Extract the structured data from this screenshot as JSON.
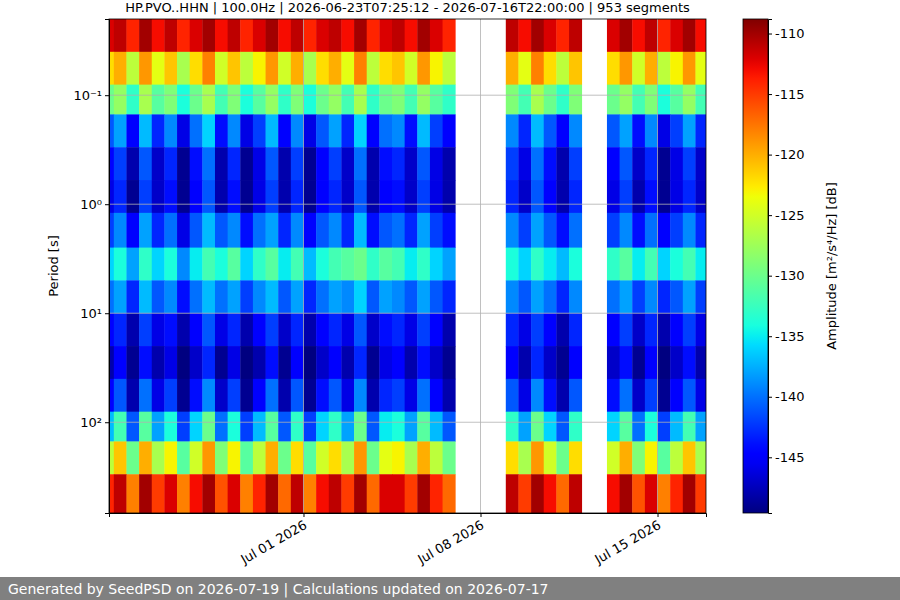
{
  "chart_data": {
    "type": "heatmap",
    "title": "HP.PVO..HHN | 100.0Hz | 2026-06-23T07:25:12 - 2026-07-16T22:00:00 | 953 segments",
    "ylabel": "Period [s]",
    "footer": "Generated by SeedPSD on 2026-07-19 | Calculations updated on 2026-07-17",
    "log": "y",
    "grid": true,
    "xlim": [
      "2026-06-23T07:25:12",
      "2026-07-16T22:00:00"
    ],
    "xticks": [
      {
        "value": "2026-07-01T00:00:00",
        "label": "Jul 01 2026"
      },
      {
        "value": "2026-07-08T00:00:00",
        "label": "Jul 08 2026"
      },
      {
        "value": "2026-07-15T00:00:00",
        "label": "Jul 15 2026"
      }
    ],
    "ylim": [
      0.02,
      680
    ],
    "yticks": [
      {
        "value": 0.1,
        "label": "10⁻¹"
      },
      {
        "value": 1,
        "label": "10⁰"
      },
      {
        "value": 10,
        "label": "10¹"
      },
      {
        "value": 100,
        "label": "10²"
      }
    ],
    "x_edges": [
      "2026-06-23T07:25:12",
      "2026-06-23T12:00:00",
      "2026-06-24T00:00:00",
      "2026-06-24T12:00:00",
      "2026-06-25T00:00:00",
      "2026-06-25T12:00:00",
      "2026-06-26T00:00:00",
      "2026-06-26T12:00:00",
      "2026-06-27T00:00:00",
      "2026-06-27T12:00:00",
      "2026-06-28T00:00:00",
      "2026-06-28T12:00:00",
      "2026-06-29T00:00:00",
      "2026-06-29T12:00:00",
      "2026-06-30T00:00:00",
      "2026-06-30T12:00:00",
      "2026-07-01T00:00:00",
      "2026-07-01T12:00:00",
      "2026-07-02T00:00:00",
      "2026-07-02T12:00:00",
      "2026-07-03T00:00:00",
      "2026-07-03T12:00:00",
      "2026-07-04T00:00:00",
      "2026-07-04T12:00:00",
      "2026-07-05T00:00:00",
      "2026-07-05T12:00:00",
      "2026-07-06T00:00:00",
      "2026-07-06T12:00:00",
      "2026-07-07T00:00:00",
      "2026-07-07T12:00:00",
      "2026-07-08T00:00:00",
      "2026-07-08T12:00:00",
      "2026-07-09T00:00:00",
      "2026-07-09T12:00:00",
      "2026-07-10T00:00:00",
      "2026-07-10T12:00:00",
      "2026-07-11T00:00:00",
      "2026-07-11T12:00:00",
      "2026-07-12T00:00:00",
      "2026-07-12T12:00:00",
      "2026-07-13T00:00:00",
      "2026-07-13T12:00:00",
      "2026-07-14T00:00:00",
      "2026-07-14T12:00:00",
      "2026-07-15T00:00:00",
      "2026-07-15T12:00:00",
      "2026-07-16T00:00:00",
      "2026-07-16T12:00:00",
      "2026-07-16T22:00:00"
    ],
    "y_edges": [
      0.02,
      0.04,
      0.08,
      0.15,
      0.3,
      0.6,
      1.2,
      2.5,
      5,
      10,
      20,
      40,
      80,
      150,
      300,
      680
    ],
    "values": [
      [
        -112,
        -111,
        -114,
        -110,
        -113,
        -111,
        -114,
        -112,
        -110,
        -113,
        -111,
        -114,
        -112,
        -110,
        -113,
        -111,
        -114,
        -112,
        -111,
        -113,
        -110,
        -114,
        -112,
        -111,
        -113,
        -110,
        -112,
        -114,
        null,
        null,
        null,
        null,
        -111,
        -113,
        -110,
        -112,
        -114,
        -111,
        null,
        null,
        -112,
        -110,
        -113,
        -111,
        -114,
        -112,
        -110,
        -113
      ],
      [
        -122,
        -120,
        -126,
        -119,
        -124,
        -121,
        -127,
        -122,
        -118,
        -125,
        -121,
        -126,
        -123,
        -119,
        -125,
        -120,
        -127,
        -122,
        -120,
        -124,
        -118,
        -126,
        -122,
        -121,
        -125,
        -119,
        -123,
        -126,
        null,
        null,
        null,
        null,
        -120,
        -124,
        -118,
        -122,
        -126,
        -121,
        null,
        null,
        -122,
        -119,
        -125,
        -120,
        -126,
        -123,
        -119,
        -124
      ],
      [
        -130,
        -128,
        -133,
        -127,
        -131,
        -129,
        -134,
        -130,
        -127,
        -132,
        -129,
        -134,
        -131,
        -128,
        -133,
        -129,
        -134,
        -130,
        -128,
        -132,
        -127,
        -133,
        -130,
        -129,
        -132,
        -128,
        -131,
        -133,
        null,
        null,
        null,
        null,
        -129,
        -132,
        -127,
        -130,
        -133,
        -129,
        null,
        null,
        -130,
        -128,
        -132,
        -129,
        -134,
        -131,
        -128,
        -132
      ],
      [
        -141,
        -138,
        -145,
        -137,
        -143,
        -139,
        -146,
        -140,
        -136,
        -144,
        -139,
        -146,
        -142,
        -137,
        -145,
        -139,
        -146,
        -141,
        -138,
        -143,
        -136,
        -145,
        -140,
        -139,
        -144,
        -137,
        -142,
        -145,
        null,
        null,
        null,
        null,
        -139,
        -143,
        -137,
        -141,
        -145,
        -139,
        null,
        null,
        -141,
        -138,
        -144,
        -139,
        -146,
        -142,
        -138,
        -143
      ],
      [
        -145,
        -142,
        -148,
        -141,
        -147,
        -143,
        -149,
        -144,
        -140,
        -148,
        -143,
        -149,
        -146,
        -141,
        -148,
        -142,
        -149,
        -145,
        -142,
        -147,
        -140,
        -148,
        -144,
        -143,
        -147,
        -141,
        -146,
        -148,
        null,
        null,
        null,
        null,
        -142,
        -146,
        -140,
        -144,
        -148,
        -142,
        null,
        null,
        -145,
        -141,
        -147,
        -143,
        -149,
        -146,
        -142,
        -147
      ],
      [
        -146,
        -143,
        -149,
        -142,
        -147,
        -144,
        -149,
        -145,
        -141,
        -148,
        -144,
        -149,
        -146,
        -142,
        -148,
        -143,
        -149,
        -145,
        -143,
        -147,
        -141,
        -148,
        -145,
        -144,
        -147,
        -142,
        -146,
        -148,
        null,
        null,
        null,
        null,
        -143,
        -147,
        -141,
        -145,
        -148,
        -143,
        null,
        null,
        -146,
        -142,
        -148,
        -144,
        -149,
        -146,
        -143,
        -147
      ],
      [
        -142,
        -139,
        -145,
        -138,
        -143,
        -140,
        -146,
        -141,
        -137,
        -141,
        -139,
        -144,
        -140,
        -138,
        -143,
        -139,
        -145,
        -141,
        -139,
        -143,
        -137,
        -144,
        -141,
        -140,
        -143,
        -138,
        -142,
        -144,
        null,
        null,
        null,
        null,
        -139,
        -142,
        -138,
        -141,
        -144,
        -140,
        null,
        null,
        -142,
        -139,
        -144,
        -140,
        -145,
        -142,
        -139,
        -143
      ],
      [
        -136,
        -134,
        -138,
        -133,
        -136,
        -134,
        -139,
        -135,
        -132,
        -134,
        -131,
        -136,
        -133,
        -131,
        -135,
        -132,
        -137,
        -134,
        -132,
        -131,
        -130,
        -133,
        -131,
        -132,
        -135,
        -133,
        -136,
        -138,
        null,
        null,
        null,
        null,
        -134,
        -136,
        -133,
        -135,
        -137,
        -134,
        null,
        null,
        -133,
        -131,
        -135,
        -132,
        -136,
        -134,
        -132,
        -135
      ],
      [
        -140,
        -138,
        -143,
        -137,
        -141,
        -139,
        -144,
        -140,
        -137,
        -140,
        -138,
        -142,
        -139,
        -137,
        -141,
        -138,
        -143,
        -140,
        -138,
        -139,
        -136,
        -141,
        -138,
        -139,
        -141,
        -138,
        -141,
        -143,
        null,
        null,
        null,
        null,
        -139,
        -141,
        -138,
        -140,
        -143,
        -139,
        null,
        null,
        -140,
        -138,
        -142,
        -139,
        -143,
        -141,
        -138,
        -142
      ],
      [
        -145,
        -143,
        -148,
        -142,
        -146,
        -144,
        -148,
        -145,
        -141,
        -146,
        -143,
        -148,
        -145,
        -142,
        -147,
        -143,
        -148,
        -145,
        -143,
        -146,
        -141,
        -147,
        -144,
        -143,
        -146,
        -142,
        -145,
        -148,
        null,
        null,
        null,
        null,
        -143,
        -146,
        -142,
        -145,
        -148,
        -143,
        null,
        null,
        -145,
        -142,
        -147,
        -143,
        -148,
        -145,
        -142,
        -146
      ],
      [
        -148,
        -145,
        -149,
        -144,
        -148,
        -146,
        -150,
        -147,
        -143,
        -149,
        -146,
        -150,
        -148,
        -144,
        -149,
        -145,
        -150,
        -147,
        -145,
        -148,
        -143,
        -149,
        -146,
        -145,
        -148,
        -144,
        -147,
        -149,
        null,
        null,
        null,
        null,
        -145,
        -148,
        -143,
        -147,
        -149,
        -145,
        null,
        null,
        -147,
        -144,
        -149,
        -145,
        -150,
        -147,
        -144,
        -148
      ],
      [
        -145,
        -141,
        -148,
        -140,
        -146,
        -142,
        -149,
        -144,
        -139,
        -147,
        -142,
        -149,
        -145,
        -140,
        -148,
        -141,
        -149,
        -144,
        -141,
        -146,
        -139,
        -148,
        -143,
        -142,
        -146,
        -140,
        -145,
        -148,
        null,
        null,
        null,
        null,
        -141,
        -146,
        -139,
        -144,
        -148,
        -141,
        null,
        null,
        -144,
        -140,
        -147,
        -142,
        -149,
        -145,
        -141,
        -146
      ],
      [
        -137,
        -132,
        -141,
        -131,
        -138,
        -134,
        -142,
        -136,
        -130,
        -140,
        -134,
        -142,
        -137,
        -131,
        -141,
        -133,
        -142,
        -136,
        -133,
        -138,
        -130,
        -141,
        -135,
        -134,
        -138,
        -131,
        -137,
        -141,
        null,
        null,
        null,
        null,
        -133,
        -138,
        -130,
        -136,
        -141,
        -133,
        null,
        null,
        -136,
        -131,
        -140,
        -134,
        -142,
        -137,
        -132,
        -138
      ],
      [
        -126,
        -121,
        -130,
        -120,
        -127,
        -123,
        -131,
        -125,
        -119,
        -129,
        -123,
        -131,
        -126,
        -120,
        -130,
        -122,
        -131,
        -125,
        -122,
        -127,
        -119,
        -130,
        -124,
        -123,
        -127,
        -120,
        -126,
        -130,
        null,
        null,
        null,
        null,
        -122,
        -127,
        -119,
        -125,
        -130,
        -122,
        null,
        null,
        -125,
        -120,
        -129,
        -123,
        -131,
        -126,
        -121,
        -127
      ],
      [
        -114,
        -111,
        -118,
        -110,
        -115,
        -112,
        -118,
        -113,
        -110,
        -116,
        -112,
        -118,
        -114,
        -110,
        -117,
        -111,
        -118,
        -113,
        -111,
        -115,
        -110,
        -117,
        -112,
        -112,
        -115,
        -110,
        -114,
        -117,
        null,
        null,
        null,
        null,
        -111,
        -115,
        -110,
        -113,
        -117,
        -111,
        null,
        null,
        -113,
        -110,
        -116,
        -112,
        -118,
        -114,
        -110,
        -115
      ]
    ],
    "colorbar": {
      "label": "Amplitude [m²/s⁴/Hz] [dB]",
      "range": [
        -149.6,
        -108.8
      ],
      "ticks": [
        -145,
        -140,
        -135,
        -130,
        -125,
        -120,
        -115,
        -110
      ]
    }
  }
}
